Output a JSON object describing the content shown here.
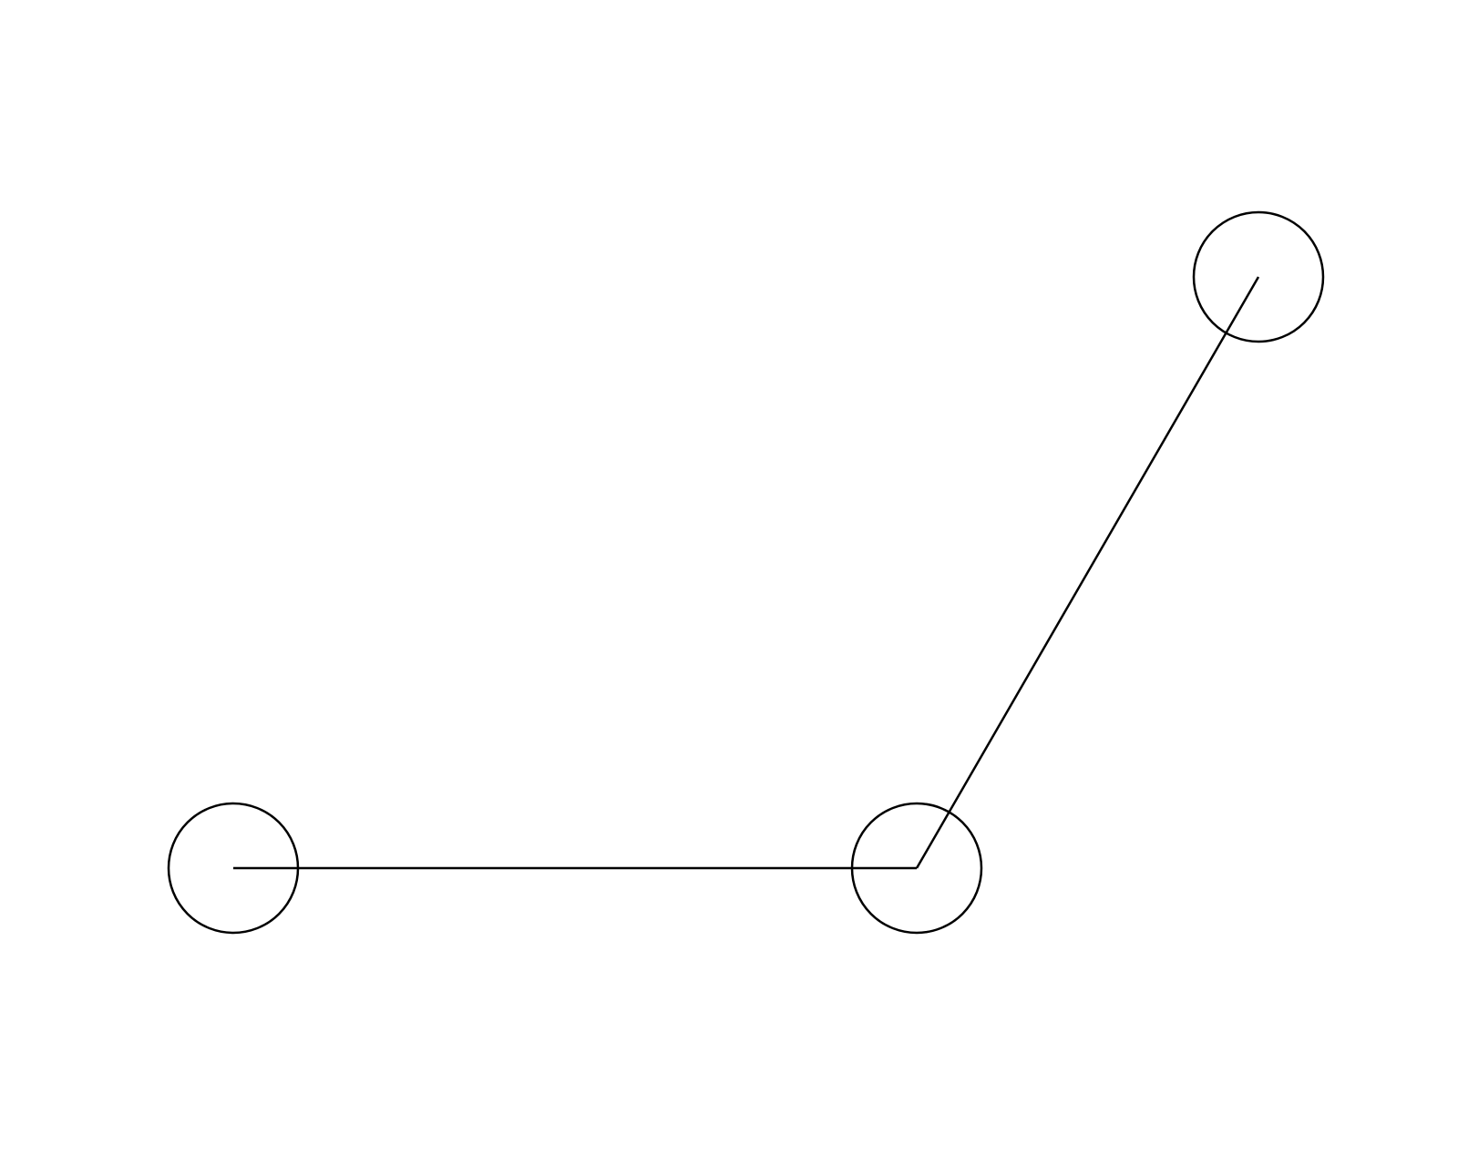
{
  "diagram": {
    "background": "#ffffff",
    "stroke_color": "#000000",
    "nodes": [
      {
        "id": "node-1",
        "label": ""
      },
      {
        "id": "node-2",
        "label": ""
      },
      {
        "id": "node-3",
        "label": ""
      }
    ],
    "edges": [
      {
        "from": "node-1",
        "to": "node-2"
      },
      {
        "from": "node-2",
        "to": "node-3"
      }
    ]
  }
}
